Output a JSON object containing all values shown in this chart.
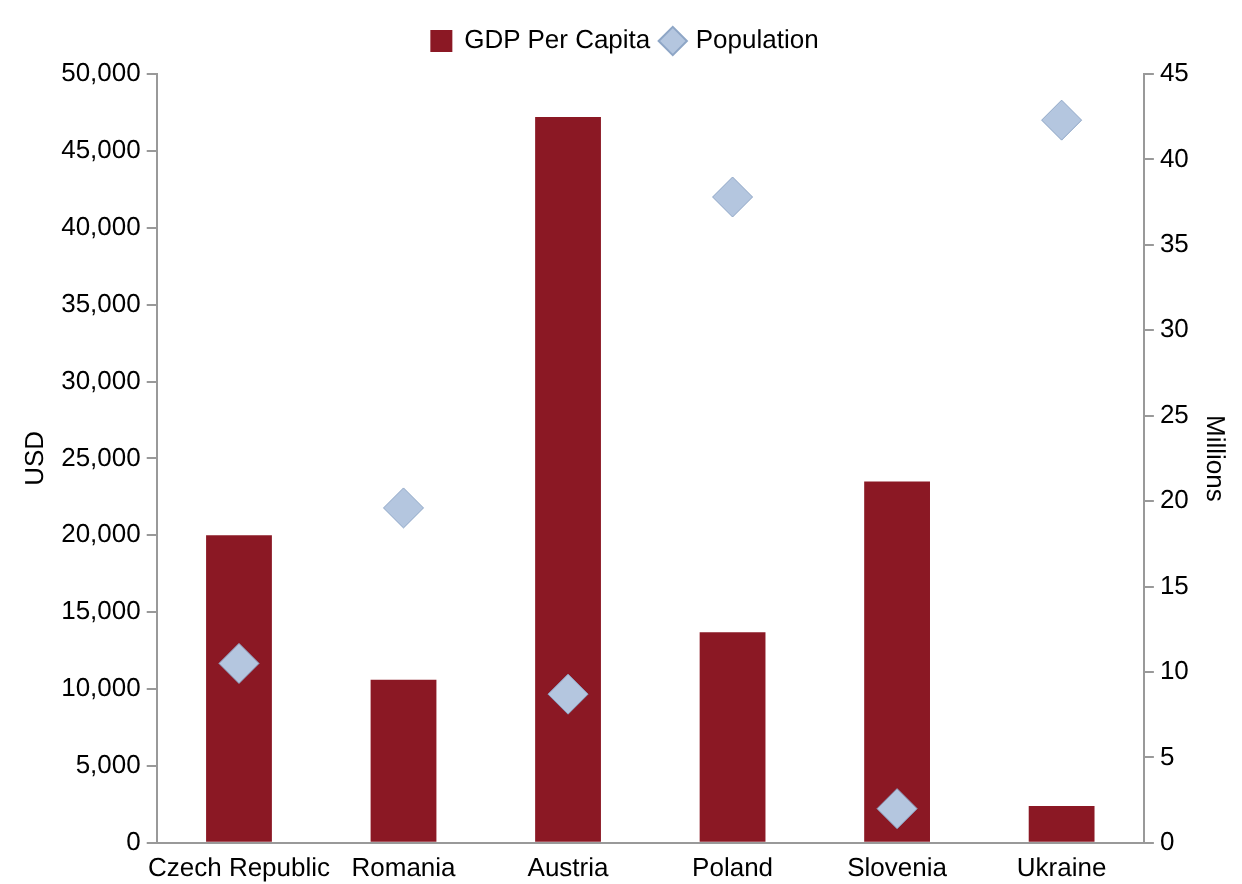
{
  "chart_data": {
    "type": "bar",
    "categories": [
      "Czech Republic",
      "Romania",
      "Austria",
      "Poland",
      "Slovenia",
      "Ukraine"
    ],
    "series": [
      {
        "name": "GDP Per Capita",
        "color": "#8b1824",
        "values": [
          20000,
          10600,
          47200,
          13700,
          23500,
          2400
        ]
      },
      {
        "name": "Population",
        "type": "scatter",
        "axis": "y2",
        "marker": "diamond",
        "color": "#b4c6df",
        "values": [
          10.5,
          19.6,
          8.7,
          37.8,
          2.0,
          42.3
        ]
      }
    ],
    "ylabel": "USD",
    "y2label": "Millions",
    "ylim": [
      0,
      50000
    ],
    "yticks": [
      0,
      {
        "value": 5000,
        "label": "5,000"
      },
      {
        "value": 10000,
        "label": "10,000"
      },
      {
        "value": 15000,
        "label": "15,000"
      },
      {
        "value": 20000,
        "label": "20,000"
      },
      {
        "value": 25000,
        "label": "25,000"
      },
      {
        "value": 30000,
        "label": "30,000"
      },
      {
        "value": 35000,
        "label": "35,000"
      },
      {
        "value": 40000,
        "label": "40,000"
      },
      {
        "value": 45000,
        "label": "45,000"
      },
      {
        "value": 50000,
        "label": "50,000"
      }
    ],
    "y2lim": [
      0,
      45
    ],
    "y2ticks": [
      0,
      5,
      10,
      15,
      20,
      25,
      30,
      35,
      40,
      45
    ],
    "legend": "top",
    "grid": false
  }
}
